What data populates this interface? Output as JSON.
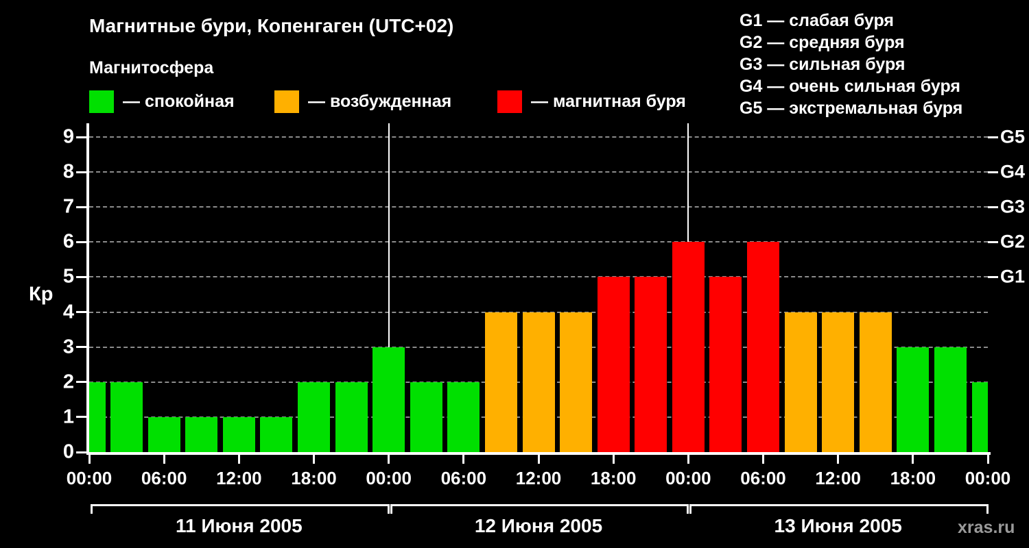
{
  "header": {
    "title": "Магнитные бури, Копенгаген (UTC+02)",
    "subtitle": "Магнитосфера",
    "legend": [
      {
        "label": "— спокойная",
        "color": "#00e000"
      },
      {
        "label": "— возбужденная",
        "color": "#ffb000"
      },
      {
        "label": "— магнитная буря",
        "color": "#ff0000"
      }
    ],
    "storm_scale": [
      "G1 — слабая буря",
      "G2 — средняя буря",
      "G3 — сильная буря",
      "G4 — очень сильная буря",
      "G5 — экстремальная буря"
    ]
  },
  "chart_data": {
    "type": "bar",
    "title": "Магнитные бури, Копенгаген (UTC+02)",
    "ylabel": "Кр",
    "ylim": [
      0,
      9
    ],
    "yticks": [
      0,
      1,
      2,
      3,
      4,
      5,
      6,
      7,
      8,
      9
    ],
    "right_axis": [
      {
        "label": "G1",
        "value": 5
      },
      {
        "label": "G2",
        "value": 6
      },
      {
        "label": "G3",
        "value": 7
      },
      {
        "label": "G4",
        "value": 8
      },
      {
        "label": "G5",
        "value": 9
      }
    ],
    "x_tick_labels": [
      "00:00",
      "06:00",
      "12:00",
      "18:00",
      "00:00",
      "06:00",
      "12:00",
      "18:00",
      "00:00",
      "06:00",
      "12:00",
      "18:00",
      "00:00"
    ],
    "bar_interval_hours": 3,
    "days": [
      {
        "date": "11 Июня 2005",
        "values": [
          2,
          2,
          1,
          1,
          1,
          1,
          2,
          2
        ]
      },
      {
        "date": "12 Июня 2005",
        "values": [
          3,
          2,
          2,
          4,
          4,
          4,
          5,
          5
        ]
      },
      {
        "date": "13 Июня 2005",
        "values": [
          6,
          5,
          6,
          4,
          4,
          4,
          3,
          3
        ]
      }
    ],
    "partial_next_value": 2,
    "color_rules": {
      "quiet_max_kp": 3,
      "excited_max_kp": 4,
      "colors": {
        "quiet": "#00e000",
        "excited": "#ffb000",
        "storm": "#ff0000"
      }
    },
    "grid": "dashed horizontal",
    "legend_position": "top"
  },
  "watermark": "xras.ru"
}
